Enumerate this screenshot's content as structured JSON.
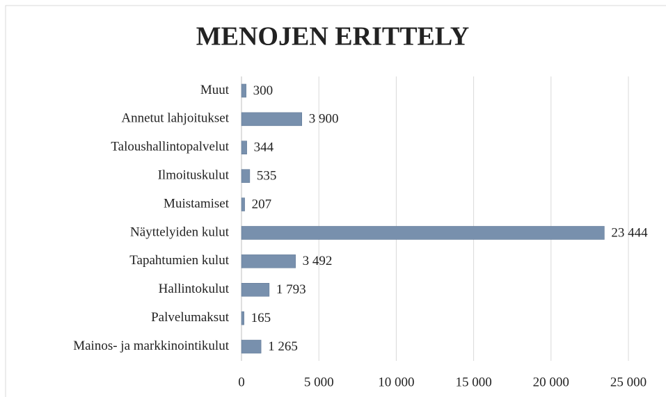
{
  "chart_data": {
    "type": "bar",
    "orientation": "horizontal",
    "title": "MENOJEN ERITTELY",
    "categories": [
      "Muut",
      "Annetut lahjoitukset",
      "Taloushallintopalvelut",
      "Ilmoituskulut",
      "Muistamiset",
      "Näyttelyiden kulut",
      "Tapahtumien kulut",
      "Hallintokulut",
      "Palvelumaksut",
      "Mainos- ja markkinointikulut"
    ],
    "values": [
      300,
      3900,
      344,
      535,
      207,
      23444,
      3492,
      1793,
      165,
      1265
    ],
    "value_labels": [
      "300",
      "3 900",
      "344",
      "535",
      "207",
      "23 444",
      "3 492",
      "1 793",
      "165",
      "1 265"
    ],
    "color": "#7890ad",
    "xlim": [
      0,
      25000
    ],
    "xticks": [
      0,
      {
        "value": 5000,
        "label": "5 000"
      },
      {
        "value": 10000,
        "label": "10 000"
      },
      {
        "value": 15000,
        "label": "15 000"
      },
      {
        "value": 20000,
        "label": "20 000"
      },
      {
        "value": 25000,
        "label": "25 000"
      }
    ],
    "grid": true
  }
}
